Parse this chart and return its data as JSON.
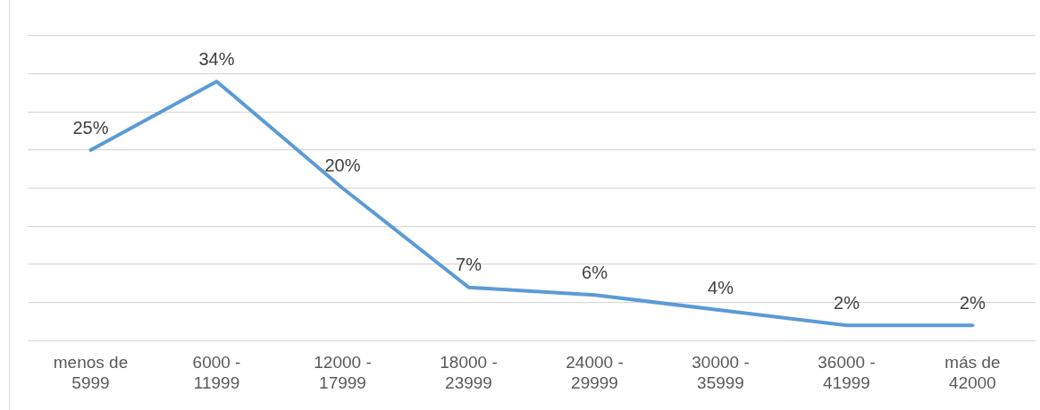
{
  "chart_data": {
    "type": "line",
    "categories": [
      "menos de\n5999",
      "6000 -\n11999",
      "12000 -\n17999",
      "18000 -\n23999",
      "24000 -\n29999",
      "30000 -\n35999",
      "36000 -\n41999",
      "más de\n42000"
    ],
    "series": [
      {
        "color": "#5b9bd5",
        "values": [
          25,
          34,
          20,
          7,
          6,
          4,
          2,
          2
        ],
        "value_labels": [
          "25%",
          "34%",
          "20%",
          "7%",
          "6%",
          "4%",
          "2%",
          "2%"
        ]
      }
    ],
    "ylim": [
      0,
      40
    ],
    "yticks": [
      {
        "value": 0,
        "label": null
      },
      {
        "value": 5,
        "label": null
      },
      {
        "value": 10,
        "label": null
      },
      {
        "value": 15,
        "label": null
      },
      {
        "value": 20,
        "label": null
      },
      {
        "value": 25,
        "label": null
      },
      {
        "value": 30,
        "label": null
      },
      {
        "value": 35,
        "label": null
      },
      {
        "value": 40,
        "label": null
      }
    ],
    "tick_labels": "x",
    "grid": "y",
    "legend": false,
    "marker": "none",
    "line_style": "solid"
  }
}
